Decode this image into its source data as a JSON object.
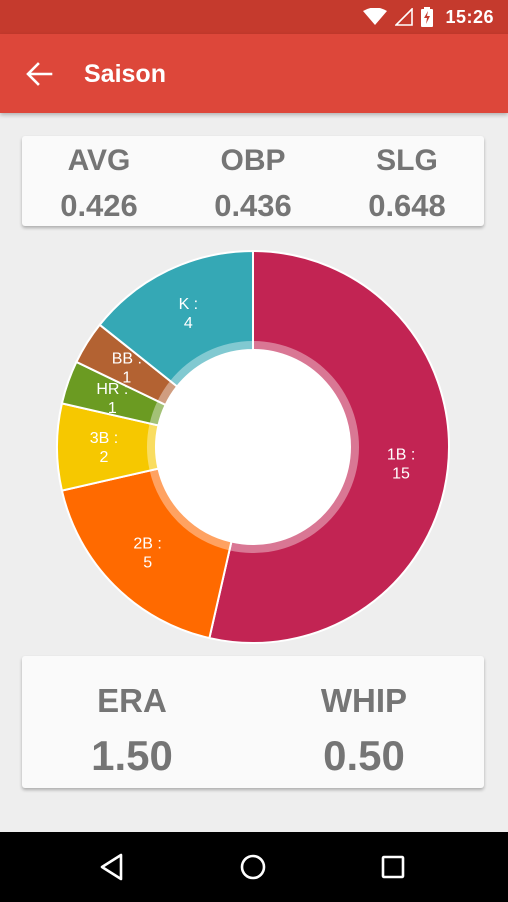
{
  "status_bar": {
    "time": "15:26",
    "icons": [
      "wifi-icon",
      "signal-icon",
      "battery-charging-icon"
    ]
  },
  "app_bar": {
    "title": "Saison",
    "back_icon": "arrow-back-icon"
  },
  "batting": [
    {
      "label": "AVG",
      "value": "0.426"
    },
    {
      "label": "OBP",
      "value": "0.436"
    },
    {
      "label": "SLG",
      "value": "0.648"
    }
  ],
  "pitching": [
    {
      "label": "ERA",
      "value": "1.50"
    },
    {
      "label": "WHIP",
      "value": "0.50"
    }
  ],
  "chart_data": {
    "type": "pie",
    "categories": [
      "1B",
      "2B",
      "3B",
      "HR",
      "BB",
      "K"
    ],
    "values": [
      15,
      5,
      2,
      1,
      1,
      4
    ],
    "labels": [
      "1B :",
      "2B :",
      "3B :",
      "HR :",
      "BB :",
      "K :"
    ],
    "colors": [
      "#c22453",
      "#ff6a00",
      "#f6c800",
      "#6b9b22",
      "#b36232",
      "#35a8b5"
    ]
  },
  "nav_bar": {
    "icons": [
      "back-triangle-icon",
      "home-circle-icon",
      "recents-square-icon"
    ]
  }
}
